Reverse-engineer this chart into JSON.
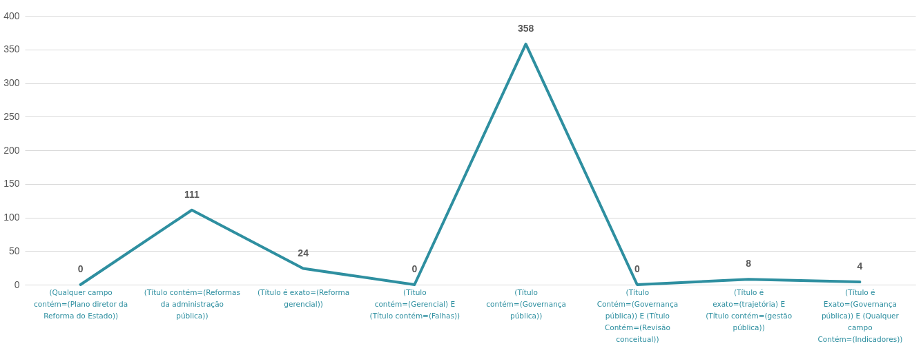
{
  "chart_data": {
    "type": "line",
    "categories": [
      "(Qualquer campo contém=(Plano diretor da Reforma do Estado))",
      "(Título contém=(Reformas da administração pública))",
      "(Título é exato=(Reforma gerencial))",
      "(Título contém=(Gerencial) E (Título contém=(Falhas))",
      "(Título contém=(Governança pública))",
      "(Título Contém=(Governança pública)) E (Título Contém=(Revisão conceitual))",
      "(Título é exato=(trajetória) E (Título contém=(gestão pública))",
      "(Título é Exato=(Governança pública)) E (Qualquer campo Contém=(Indicadores))"
    ],
    "series": [
      {
        "color": "#2e8fa0",
        "values": [
          0,
          111,
          24,
          0,
          358,
          0,
          8,
          4
        ]
      }
    ],
    "ylim": [
      0,
      400
    ],
    "yticks": [
      0,
      50,
      100,
      150,
      200,
      250,
      300,
      350,
      400
    ],
    "grid": "y",
    "data_labels": true,
    "line_style": "solid",
    "marker": "none"
  }
}
